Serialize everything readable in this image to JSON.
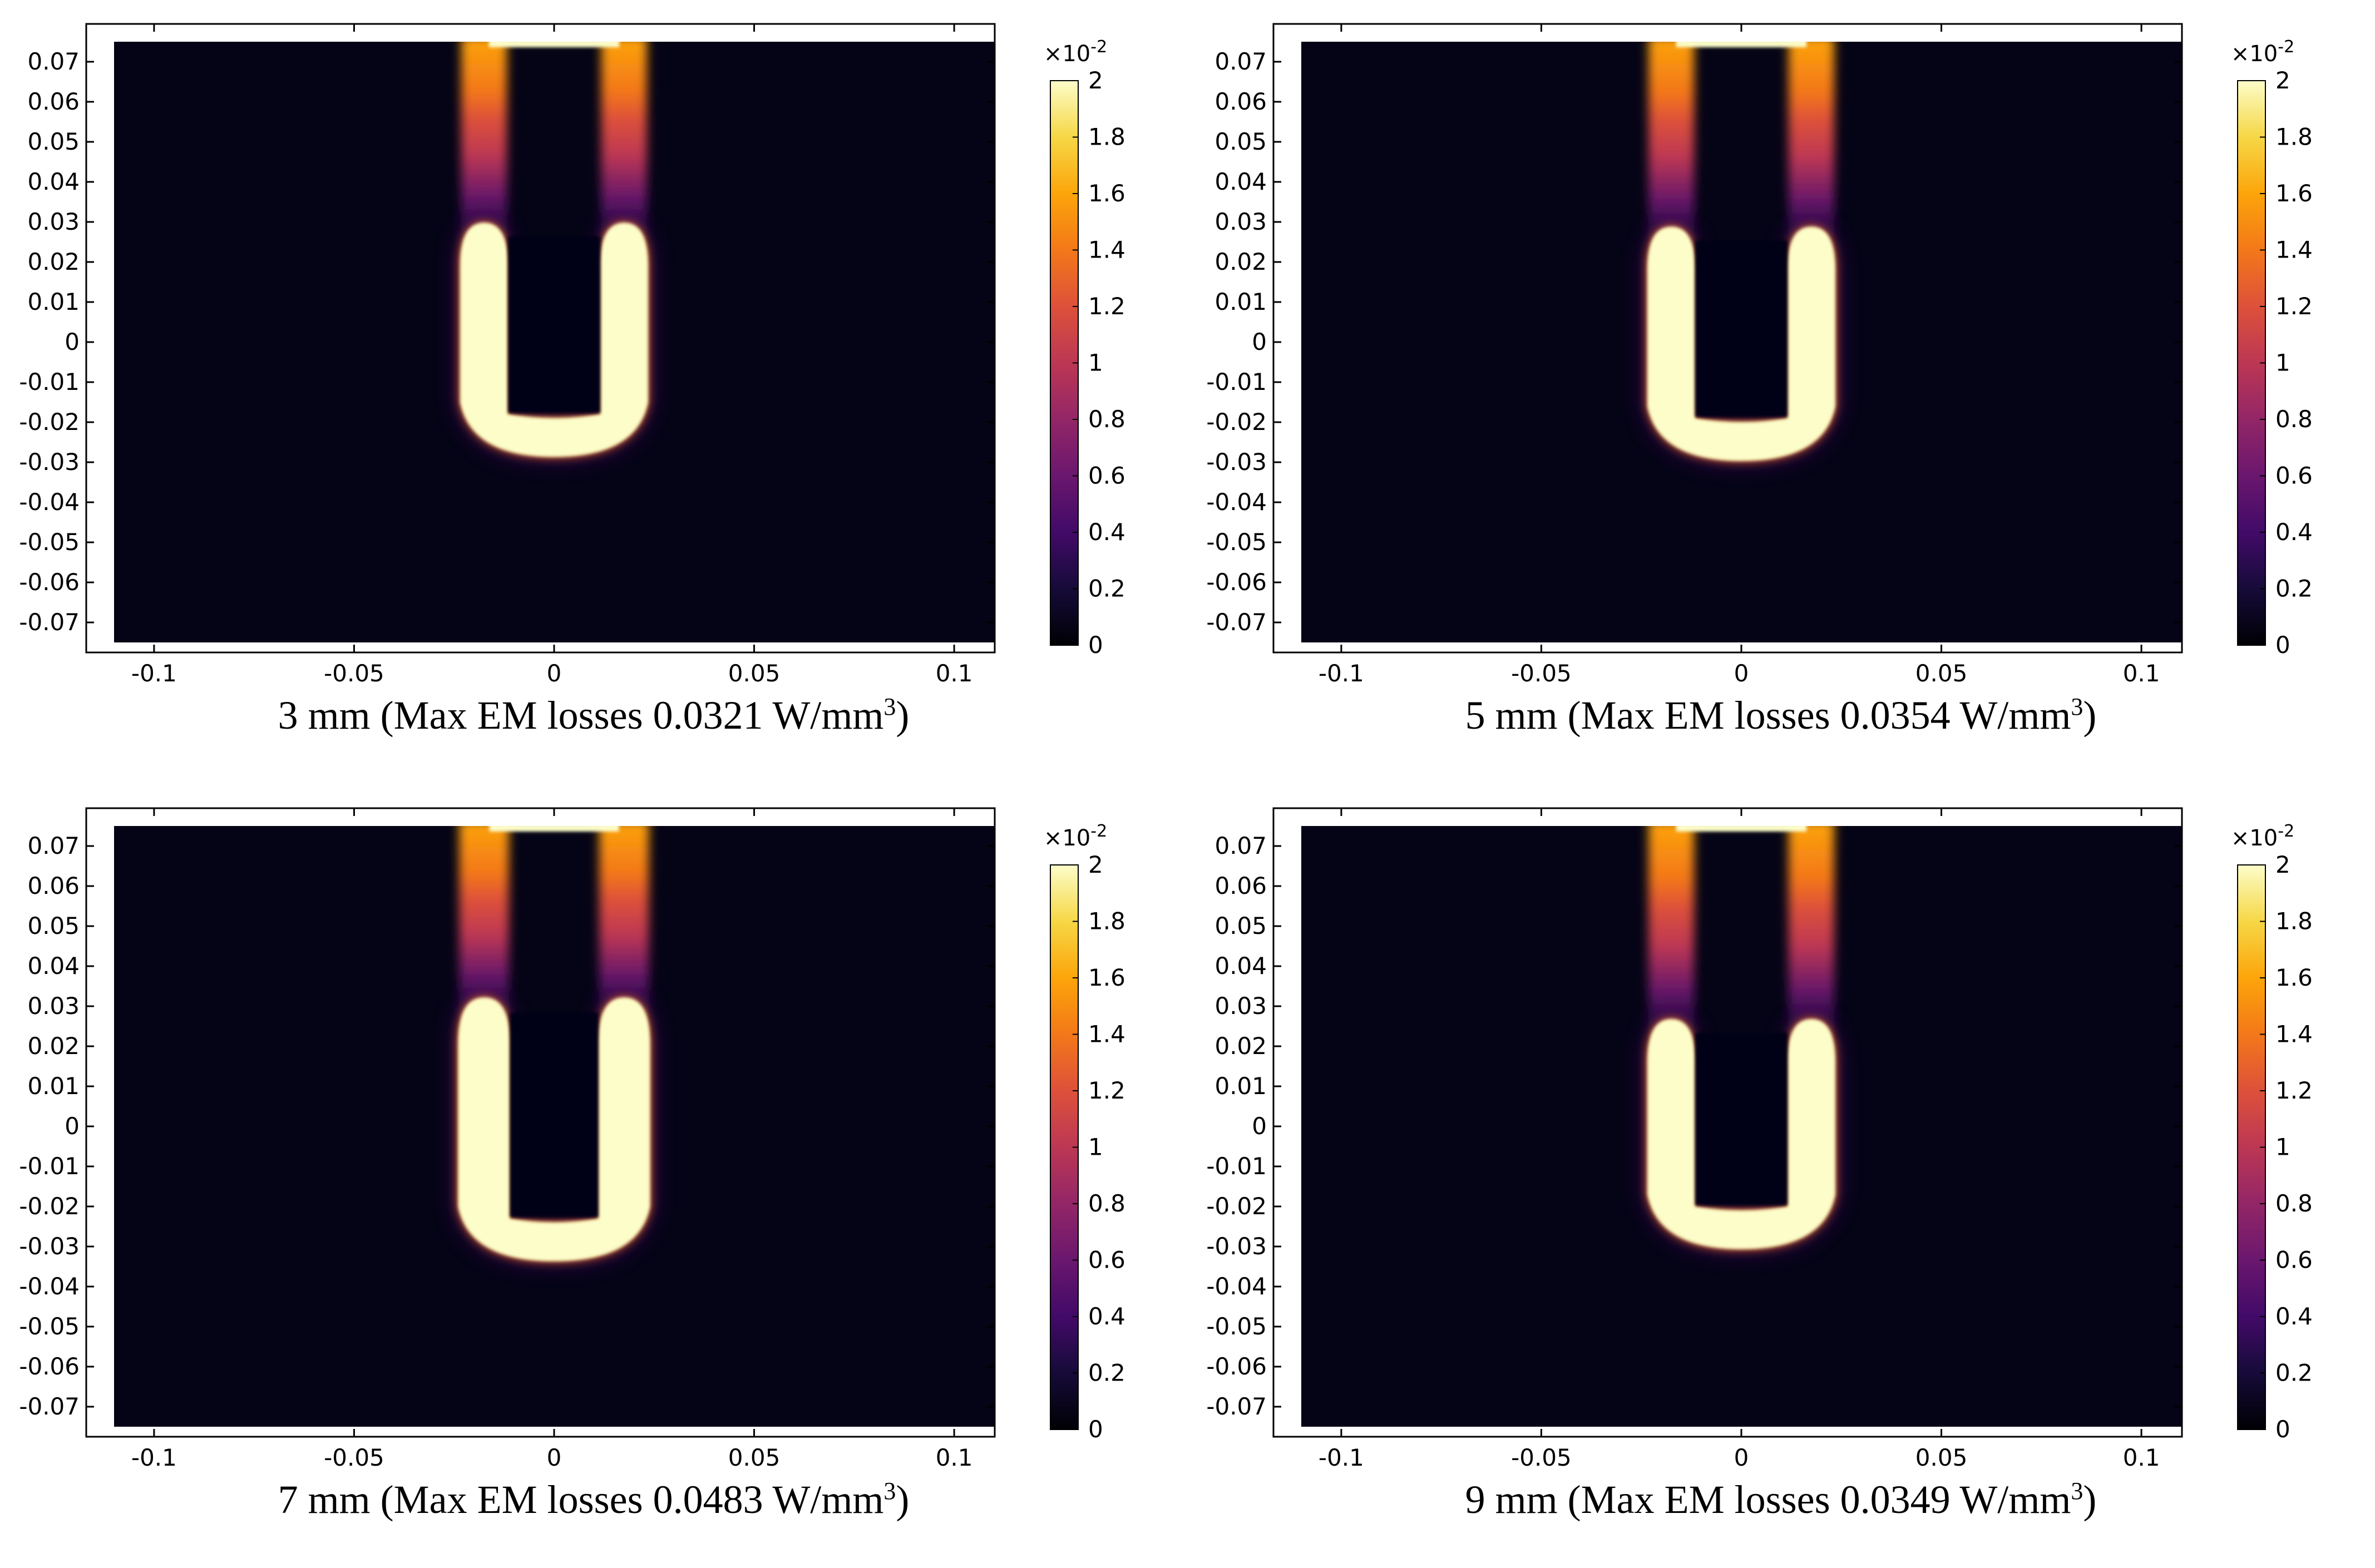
{
  "chart_data": [
    {
      "type": "heatmap",
      "caption_main": "3 mm (Max EM losses 0.0321 W/mm",
      "caption_sup": "3",
      "caption_end": ")",
      "xlim": [
        -0.11,
        0.11
      ],
      "ylim": [
        -0.075,
        0.075
      ],
      "xticks": [
        "-0.1",
        "-0.05",
        "0",
        "0.05",
        "0.1"
      ],
      "xtick_values": [
        -0.1,
        -0.05,
        0,
        0.05,
        0.1
      ],
      "yticks": [
        "0.07",
        "0.06",
        "0.05",
        "0.04",
        "0.03",
        "0.02",
        "0.01",
        "0",
        "-0.01",
        "-0.02",
        "-0.03",
        "-0.04",
        "-0.05",
        "-0.06",
        "-0.07"
      ],
      "ytick_values": [
        0.07,
        0.06,
        0.05,
        0.04,
        0.03,
        0.02,
        0.01,
        0,
        -0.01,
        -0.02,
        -0.03,
        -0.04,
        -0.05,
        -0.06,
        -0.07
      ],
      "colorbar": {
        "range": [
          0,
          2
        ],
        "labels": [
          "2",
          "1.8",
          "1.6",
          "1.4",
          "1.2",
          "1",
          "0.8",
          "0.6",
          "0.4",
          "0.2",
          "0"
        ],
        "multiplier_base": "×10",
        "multiplier_exp": "-2",
        "colormap": "inferno"
      },
      "coil": {
        "outer_half_width": 0.0235,
        "inner_half_width": 0.0115,
        "bottom": -0.027,
        "top": 0.025
      }
    },
    {
      "type": "heatmap",
      "caption_main": "5 mm (Max EM losses 0.0354 W/mm",
      "caption_sup": "3",
      "caption_end": ")",
      "xlim": [
        -0.11,
        0.11
      ],
      "ylim": [
        -0.075,
        0.075
      ],
      "xticks": [
        "-0.1",
        "-0.05",
        "0",
        "0.05",
        "0.1"
      ],
      "xtick_values": [
        -0.1,
        -0.05,
        0,
        0.05,
        0.1
      ],
      "yticks": [
        "0.07",
        "0.06",
        "0.05",
        "0.04",
        "0.03",
        "0.02",
        "0.01",
        "0",
        "-0.01",
        "-0.02",
        "-0.03",
        "-0.04",
        "-0.05",
        "-0.06",
        "-0.07"
      ],
      "ytick_values": [
        0.07,
        0.06,
        0.05,
        0.04,
        0.03,
        0.02,
        0.01,
        0,
        -0.01,
        -0.02,
        -0.03,
        -0.04,
        -0.05,
        -0.06,
        -0.07
      ],
      "colorbar": {
        "range": [
          0,
          2
        ],
        "labels": [
          "2",
          "1.8",
          "1.6",
          "1.4",
          "1.2",
          "1",
          "0.8",
          "0.6",
          "0.4",
          "0.2",
          "0"
        ],
        "multiplier_base": "×10",
        "multiplier_exp": "-2",
        "colormap": "inferno"
      },
      "coil": {
        "outer_half_width": 0.0235,
        "inner_half_width": 0.0115,
        "bottom": -0.028,
        "top": 0.024
      }
    },
    {
      "type": "heatmap",
      "caption_main": "7 mm (Max EM losses 0.0483 W/mm",
      "caption_sup": "3",
      "caption_end": ")",
      "xlim": [
        -0.11,
        0.11
      ],
      "ylim": [
        -0.075,
        0.075
      ],
      "xticks": [
        "-0.1",
        "-0.05",
        "0",
        "0.05",
        "0.1"
      ],
      "xtick_values": [
        -0.1,
        -0.05,
        0,
        0.05,
        0.1
      ],
      "yticks": [
        "0.07",
        "0.06",
        "0.05",
        "0.04",
        "0.03",
        "0.02",
        "0.01",
        "0",
        "-0.01",
        "-0.02",
        "-0.03",
        "-0.04",
        "-0.05",
        "-0.06",
        "-0.07"
      ],
      "ytick_values": [
        0.07,
        0.06,
        0.05,
        0.04,
        0.03,
        0.02,
        0.01,
        0,
        -0.01,
        -0.02,
        -0.03,
        -0.04,
        -0.05,
        -0.06,
        -0.07
      ],
      "colorbar": {
        "range": [
          0,
          2
        ],
        "labels": [
          "2",
          "1.8",
          "1.6",
          "1.4",
          "1.2",
          "1",
          "0.8",
          "0.6",
          "0.4",
          "0.2",
          "0"
        ],
        "multiplier_base": "×10",
        "multiplier_exp": "-2",
        "colormap": "inferno"
      },
      "coil": {
        "outer_half_width": 0.024,
        "inner_half_width": 0.011,
        "bottom": -0.032,
        "top": 0.027
      }
    },
    {
      "type": "heatmap",
      "caption_main": "9 mm (Max EM losses 0.0349 W/mm",
      "caption_sup": "3",
      "caption_end": ")",
      "xlim": [
        -0.11,
        0.11
      ],
      "ylim": [
        -0.075,
        0.075
      ],
      "xticks": [
        "-0.1",
        "-0.05",
        "0",
        "0.05",
        "0.1"
      ],
      "xtick_values": [
        -0.1,
        -0.05,
        0,
        0.05,
        0.1
      ],
      "yticks": [
        "0.07",
        "0.06",
        "0.05",
        "0.04",
        "0.03",
        "0.02",
        "0.01",
        "0",
        "-0.01",
        "-0.02",
        "-0.03",
        "-0.04",
        "-0.05",
        "-0.06",
        "-0.07"
      ],
      "ytick_values": [
        0.07,
        0.06,
        0.05,
        0.04,
        0.03,
        0.02,
        0.01,
        0,
        -0.01,
        -0.02,
        -0.03,
        -0.04,
        -0.05,
        -0.06,
        -0.07
      ],
      "colorbar": {
        "range": [
          0,
          2
        ],
        "labels": [
          "2",
          "1.8",
          "1.6",
          "1.4",
          "1.2",
          "1",
          "0.8",
          "0.6",
          "0.4",
          "0.2",
          "0"
        ],
        "multiplier_base": "×10",
        "multiplier_exp": "-2",
        "colormap": "inferno"
      },
      "coil": {
        "outer_half_width": 0.0235,
        "inner_half_width": 0.0115,
        "bottom": -0.029,
        "top": 0.022
      }
    }
  ]
}
